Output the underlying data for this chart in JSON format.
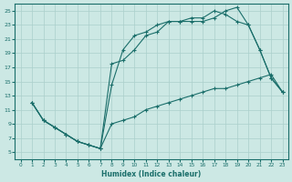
{
  "xlabel": "Humidex (Indice chaleur)",
  "ylabel": "",
  "xlim": [
    -0.5,
    23.5
  ],
  "ylim": [
    4,
    26
  ],
  "xticks": [
    0,
    1,
    2,
    3,
    4,
    5,
    6,
    7,
    8,
    9,
    10,
    11,
    12,
    13,
    14,
    15,
    16,
    17,
    18,
    19,
    20,
    21,
    22,
    23
  ],
  "yticks": [
    5,
    7,
    9,
    11,
    13,
    15,
    17,
    19,
    21,
    23,
    25
  ],
  "background_color": "#cce8e4",
  "grid_color": "#aacfcb",
  "line_color": "#1a6e6a",
  "line1_x": [
    1,
    2,
    3,
    4,
    5,
    6,
    7,
    8,
    9,
    10,
    11,
    12,
    13,
    14,
    15,
    16,
    17,
    18,
    19,
    20,
    21,
    22,
    23
  ],
  "line1_y": [
    12,
    9.5,
    8.5,
    7.5,
    6.5,
    6,
    5.5,
    9,
    9.5,
    10,
    11,
    11.5,
    12,
    12.5,
    13,
    13.5,
    14,
    14,
    14.5,
    15,
    15.5,
    16,
    13.5
  ],
  "line2_x": [
    1,
    2,
    3,
    4,
    5,
    6,
    7,
    8,
    9,
    10,
    11,
    12,
    13,
    14,
    15,
    16,
    17,
    18,
    19,
    20,
    21,
    22,
    23
  ],
  "line2_y": [
    12,
    9.5,
    8.5,
    7.5,
    6.5,
    6,
    5.5,
    14.5,
    19.5,
    21.5,
    22,
    23,
    23.5,
    23.5,
    23.5,
    23.5,
    24,
    25,
    25.5,
    23,
    19.5,
    15.5,
    13.5
  ],
  "line3_x": [
    1,
    2,
    3,
    4,
    5,
    6,
    7,
    8,
    9,
    10,
    11,
    12,
    13,
    14,
    15,
    16,
    17,
    18,
    19,
    20,
    21,
    22,
    23
  ],
  "line3_y": [
    12,
    9.5,
    8.5,
    7.5,
    6.5,
    6,
    5.5,
    17.5,
    18,
    19.5,
    21.5,
    22,
    23.5,
    23.5,
    24,
    24,
    25,
    24.5,
    23.5,
    23,
    19.5,
    15.5,
    13.5
  ]
}
